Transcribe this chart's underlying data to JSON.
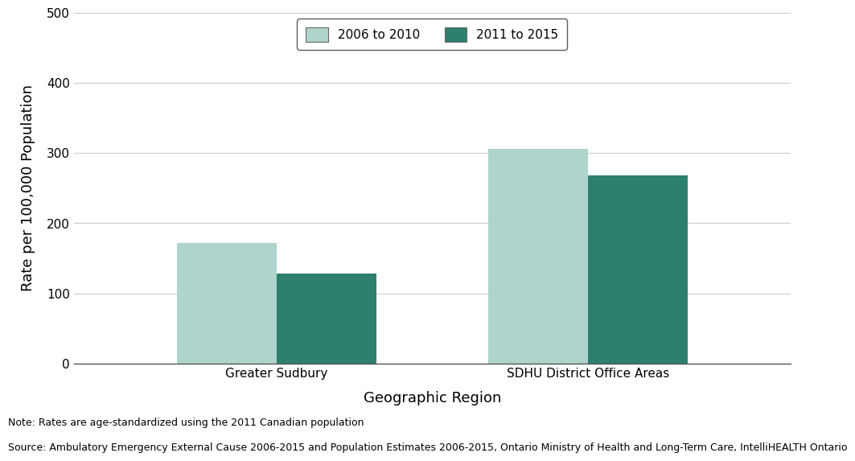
{
  "categories": [
    "Greater Sudbury",
    "SDHU District Office Areas"
  ],
  "series": {
    "2006 to 2010": [
      172,
      306
    ],
    "2011 to 2015": [
      128,
      268
    ]
  },
  "colors": {
    "2006 to 2010": "#aed4cc",
    "2011 to 2015": "#2d7f6e"
  },
  "ylabel": "Rate per 100,000 Population",
  "xlabel": "Geographic Region",
  "ylim": [
    0,
    500
  ],
  "yticks": [
    0,
    100,
    200,
    300,
    400,
    500
  ],
  "legend_labels": [
    "2006 to 2010",
    "2011 to 2015"
  ],
  "note_line1": "Note: Rates are age-standardized using the 2011 Canadian population",
  "note_line2": "Source: Ambulatory Emergency External Cause 2006-2015 and Population Estimates 2006-2015, Ontario Ministry of Health and Long-Term Care, IntelliHEALTH Ontario",
  "bar_width": 0.32,
  "background_color": "#ffffff",
  "grid_color": "#cccccc",
  "label_fontsize": 13,
  "tick_fontsize": 11,
  "legend_fontsize": 11,
  "note_fontsize": 9
}
